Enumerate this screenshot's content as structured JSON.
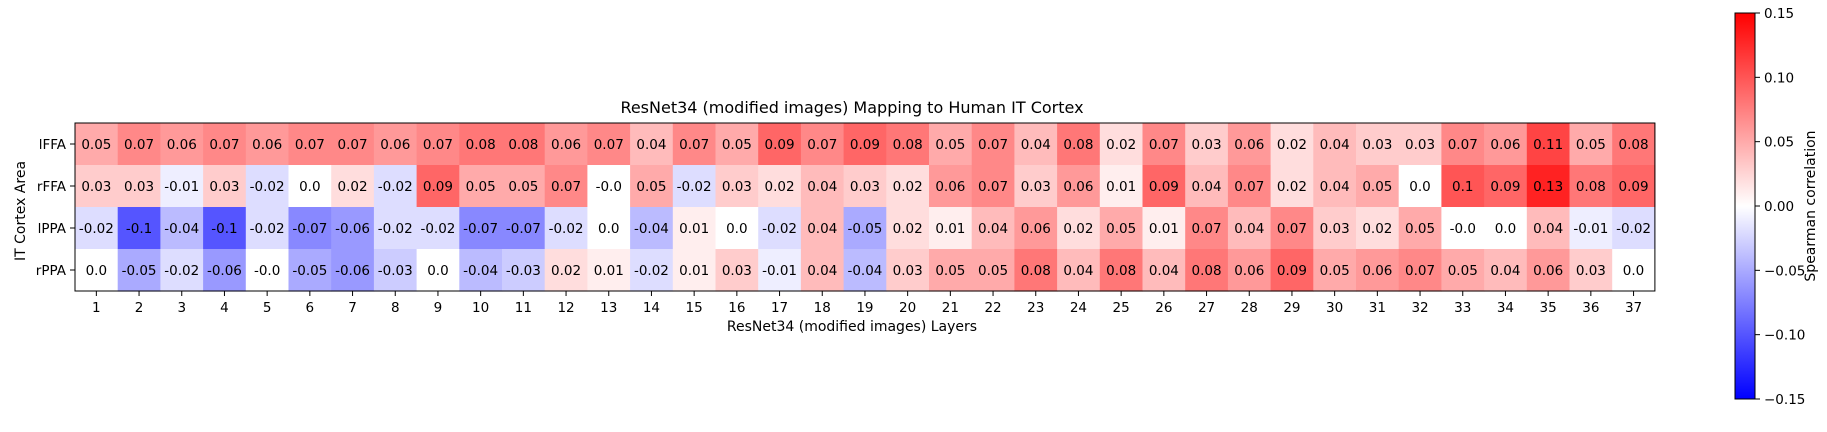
{
  "chart_data": {
    "type": "heatmap",
    "title": "ResNet34 (modified images) Mapping to Human IT Cortex",
    "xlabel": "ResNet34 (modified images) Layers",
    "ylabel": "IT Cortex Area",
    "x_categories": [
      "1",
      "2",
      "3",
      "4",
      "5",
      "6",
      "7",
      "8",
      "9",
      "10",
      "11",
      "12",
      "13",
      "14",
      "15",
      "16",
      "17",
      "18",
      "19",
      "20",
      "21",
      "22",
      "23",
      "24",
      "25",
      "26",
      "27",
      "28",
      "29",
      "30",
      "31",
      "32",
      "33",
      "34",
      "35",
      "36",
      "37"
    ],
    "y_categories": [
      "lFFA",
      "rFFA",
      "lPPA",
      "rPPA"
    ],
    "values": [
      [
        "0.05",
        "0.07",
        "0.06",
        "0.07",
        "0.06",
        "0.07",
        "0.07",
        "0.06",
        "0.07",
        "0.08",
        "0.08",
        "0.06",
        "0.07",
        "0.04",
        "0.07",
        "0.05",
        "0.09",
        "0.07",
        "0.09",
        "0.08",
        "0.05",
        "0.07",
        "0.04",
        "0.08",
        "0.02",
        "0.07",
        "0.03",
        "0.06",
        "0.02",
        "0.04",
        "0.03",
        "0.03",
        "0.07",
        "0.06",
        "0.11",
        "0.05",
        "0.08"
      ],
      [
        "0.03",
        "0.03",
        "-0.01",
        "0.03",
        "-0.02",
        "0.0",
        "0.02",
        "-0.02",
        "0.09",
        "0.05",
        "0.05",
        "0.07",
        "-0.0",
        "0.05",
        "-0.02",
        "0.03",
        "0.02",
        "0.04",
        "0.03",
        "0.02",
        "0.06",
        "0.07",
        "0.03",
        "0.06",
        "0.01",
        "0.09",
        "0.04",
        "0.07",
        "0.02",
        "0.04",
        "0.05",
        "0.0",
        "0.1",
        "0.09",
        "0.13",
        "0.08",
        "0.09"
      ],
      [
        "-0.02",
        "-0.1",
        "-0.04",
        "-0.1",
        "-0.02",
        "-0.07",
        "-0.06",
        "-0.02",
        "-0.02",
        "-0.07",
        "-0.07",
        "-0.02",
        "0.0",
        "-0.04",
        "0.01",
        "0.0",
        "-0.02",
        "0.04",
        "-0.05",
        "0.02",
        "0.01",
        "0.04",
        "0.06",
        "0.02",
        "0.05",
        "0.01",
        "0.07",
        "0.04",
        "0.07",
        "0.03",
        "0.02",
        "0.05",
        "-0.0",
        "0.0",
        "0.04",
        "-0.01",
        "-0.02"
      ],
      [
        "0.0",
        "-0.05",
        "-0.02",
        "-0.06",
        "-0.0",
        "-0.05",
        "-0.06",
        "-0.03",
        "0.0",
        "-0.04",
        "-0.03",
        "0.02",
        "0.01",
        "-0.02",
        "0.01",
        "0.03",
        "-0.01",
        "0.04",
        "-0.04",
        "0.03",
        "0.05",
        "0.05",
        "0.08",
        "0.04",
        "0.08",
        "0.04",
        "0.08",
        "0.06",
        "0.09",
        "0.05",
        "0.06",
        "0.07",
        "0.05",
        "0.04",
        "0.06",
        "0.03",
        "0.0"
      ]
    ],
    "colorbar": {
      "label": "Spearman correlation",
      "range": [
        -0.15,
        0.15
      ],
      "ticks": [
        "0.15",
        "0.10",
        "0.05",
        "0.00",
        "−0.05",
        "−0.10",
        "−0.15"
      ],
      "colormap": "bwr",
      "colors": {
        "low": "#0000ff",
        "mid": "#ffffff",
        "high": "#ff0000"
      }
    },
    "grid": false
  }
}
